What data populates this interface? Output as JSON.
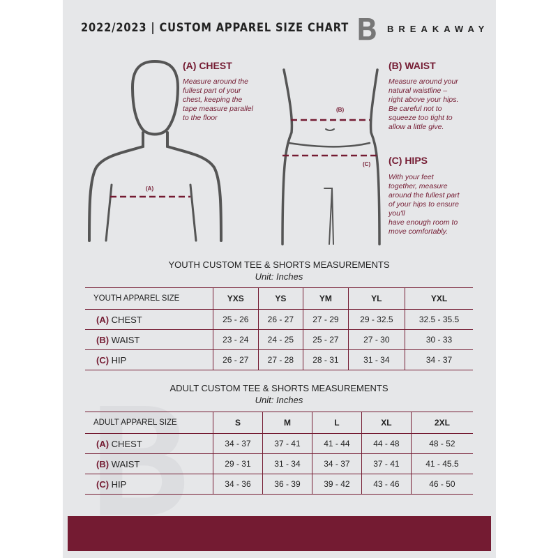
{
  "header": {
    "title": "2022/2023  |  CUSTOM APPAREL SIZE CHART",
    "brand": "BREAKAWAY",
    "logo_letter": "B"
  },
  "colors": {
    "accent": "#741b32",
    "panel": "#e6e7e9",
    "figure": "#555555"
  },
  "sections": {
    "chest": {
      "heading": "(A) CHEST",
      "text": [
        "Measure around the",
        "fullest part of your",
        "chest, keeping the",
        "tape measure parallel",
        "to the floor"
      ],
      "marker": "(A)"
    },
    "waist": {
      "heading": "(B) WAIST",
      "text": [
        "Measure around your",
        "natural waistline –",
        "right above your hips.",
        "Be careful not to",
        "squeeze too tight to",
        "allow a little give."
      ],
      "marker": "(B)"
    },
    "hips": {
      "heading": "(C) HIPS",
      "text": [
        "With your feet",
        "together, measure",
        "around the fullest part",
        "of your hips to ensure",
        "you'll",
        "have enough room to",
        "move comfortably."
      ],
      "marker": "(C)"
    }
  },
  "youth": {
    "title": "YOUTH CUSTOM TEE & SHORTS MEASUREMENTS",
    "unit": "Unit: Inches",
    "header": [
      "YOUTH APPAREL SIZE",
      "YXS",
      "YS",
      "YM",
      "YL",
      "YXL"
    ],
    "rows": [
      {
        "code": "(A)",
        "label": "CHEST",
        "values": [
          "25 - 26",
          "26 - 27",
          "27 - 29",
          "29 - 32.5",
          "32.5 - 35.5"
        ]
      },
      {
        "code": "(B)",
        "label": "WAIST",
        "values": [
          "23 - 24",
          "24 - 25",
          "25 - 27",
          "27 - 30",
          "30 - 33"
        ]
      },
      {
        "code": "(C)",
        "label": "HIP",
        "values": [
          "26 - 27",
          "27 - 28",
          "28 - 31",
          "31 - 34",
          "34 - 37"
        ]
      }
    ]
  },
  "adult": {
    "title": "ADULT CUSTOM TEE & SHORTS MEASUREMENTS",
    "unit": "Unit: Inches",
    "header": [
      "ADULT APPAREL SIZE",
      "S",
      "M",
      "L",
      "XL",
      "2XL"
    ],
    "rows": [
      {
        "code": "(A)",
        "label": "CHEST",
        "values": [
          "34 - 37",
          "37 - 41",
          "41 - 44",
          "44 - 48",
          "48 - 52"
        ]
      },
      {
        "code": "(B)",
        "label": "WAIST",
        "values": [
          "29 - 31",
          "31 - 34",
          "34 - 37",
          "37 - 41",
          "41 - 45.5"
        ]
      },
      {
        "code": "(C)",
        "label": "HIP",
        "values": [
          "34 - 36",
          "36 - 39",
          "39 - 42",
          "43 - 46",
          "46 - 50"
        ]
      }
    ]
  }
}
